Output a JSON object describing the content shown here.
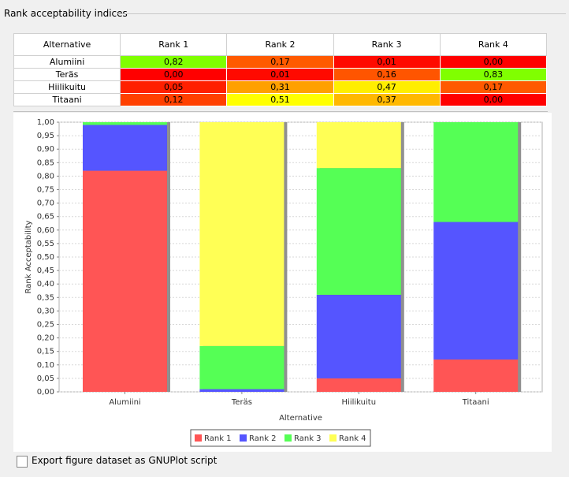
{
  "panel_title": "Rank acceptability indices",
  "table": {
    "header": [
      "Alternative",
      "Rank 1",
      "Rank 2",
      "Rank 3",
      "Rank 4"
    ],
    "rows": [
      [
        "Alumiini",
        "0,82",
        "0,17",
        "0,01",
        "0,00"
      ],
      [
        "Teräs",
        "0,00",
        "0,01",
        "0,16",
        "0,83"
      ],
      [
        "Hiilikuitu",
        "0,05",
        "0,31",
        "0,47",
        "0,17"
      ],
      [
        "Titaani",
        "0,12",
        "0,51",
        "0,37",
        "0,00"
      ]
    ],
    "cell_colors": [
      [
        "#80ff00",
        "#ff5a00",
        "#ff0a00",
        "#ff0000"
      ],
      [
        "#ff0000",
        "#ff0a00",
        "#ff5500",
        "#80ff00"
      ],
      [
        "#ff2000",
        "#ffa000",
        "#ffee00",
        "#ff5a00"
      ],
      [
        "#ff4000",
        "#ffff00",
        "#ffb800",
        "#ff0000"
      ]
    ]
  },
  "chart_data": {
    "type": "stacked_bar",
    "categories": [
      "Alumiini",
      "Teräs",
      "Hiilikuitu",
      "Titaani"
    ],
    "series": [
      {
        "name": "Rank 1",
        "color": "#ff5555",
        "values": [
          0.82,
          0.0,
          0.05,
          0.12
        ]
      },
      {
        "name": "Rank 2",
        "color": "#5555ff",
        "values": [
          0.17,
          0.01,
          0.31,
          0.51
        ]
      },
      {
        "name": "Rank 3",
        "color": "#55ff55",
        "values": [
          0.01,
          0.16,
          0.47,
          0.37
        ]
      },
      {
        "name": "Rank 4",
        "color": "#ffff55",
        "values": [
          0.0,
          0.83,
          0.17,
          0.0
        ]
      }
    ],
    "y_label": "Rank Acceptability",
    "x_label": "Alternative",
    "ylim": [
      0,
      1
    ],
    "yticks": [
      {
        "value": 0,
        "label": "0,00"
      },
      {
        "value": 0.05,
        "label": "0,05"
      },
      {
        "value": 0.1,
        "label": "0,10"
      },
      {
        "value": 0.15,
        "label": "0,15"
      },
      {
        "value": 0.2,
        "label": "0,20"
      },
      {
        "value": 0.25,
        "label": "0,25"
      },
      {
        "value": 0.3,
        "label": "0,30"
      },
      {
        "value": 0.35,
        "label": "0,35"
      },
      {
        "value": 0.4,
        "label": "0,40"
      },
      {
        "value": 0.45,
        "label": "0,45"
      },
      {
        "value": 0.5,
        "label": "0,50"
      },
      {
        "value": 0.55,
        "label": "0,55"
      },
      {
        "value": 0.6,
        "label": "0,60"
      },
      {
        "value": 0.65,
        "label": "0,65"
      },
      {
        "value": 0.7,
        "label": "0,70"
      },
      {
        "value": 0.75,
        "label": "0,75"
      },
      {
        "value": 0.8,
        "label": "0,80"
      },
      {
        "value": 0.85,
        "label": "0,85"
      },
      {
        "value": 0.9,
        "label": "0,90"
      },
      {
        "value": 0.95,
        "label": "0,95"
      },
      {
        "value": 1,
        "label": "1,00"
      }
    ],
    "grid": true,
    "legend": "bottom"
  },
  "export_link": "Export figure dataset as GNUPlot script"
}
